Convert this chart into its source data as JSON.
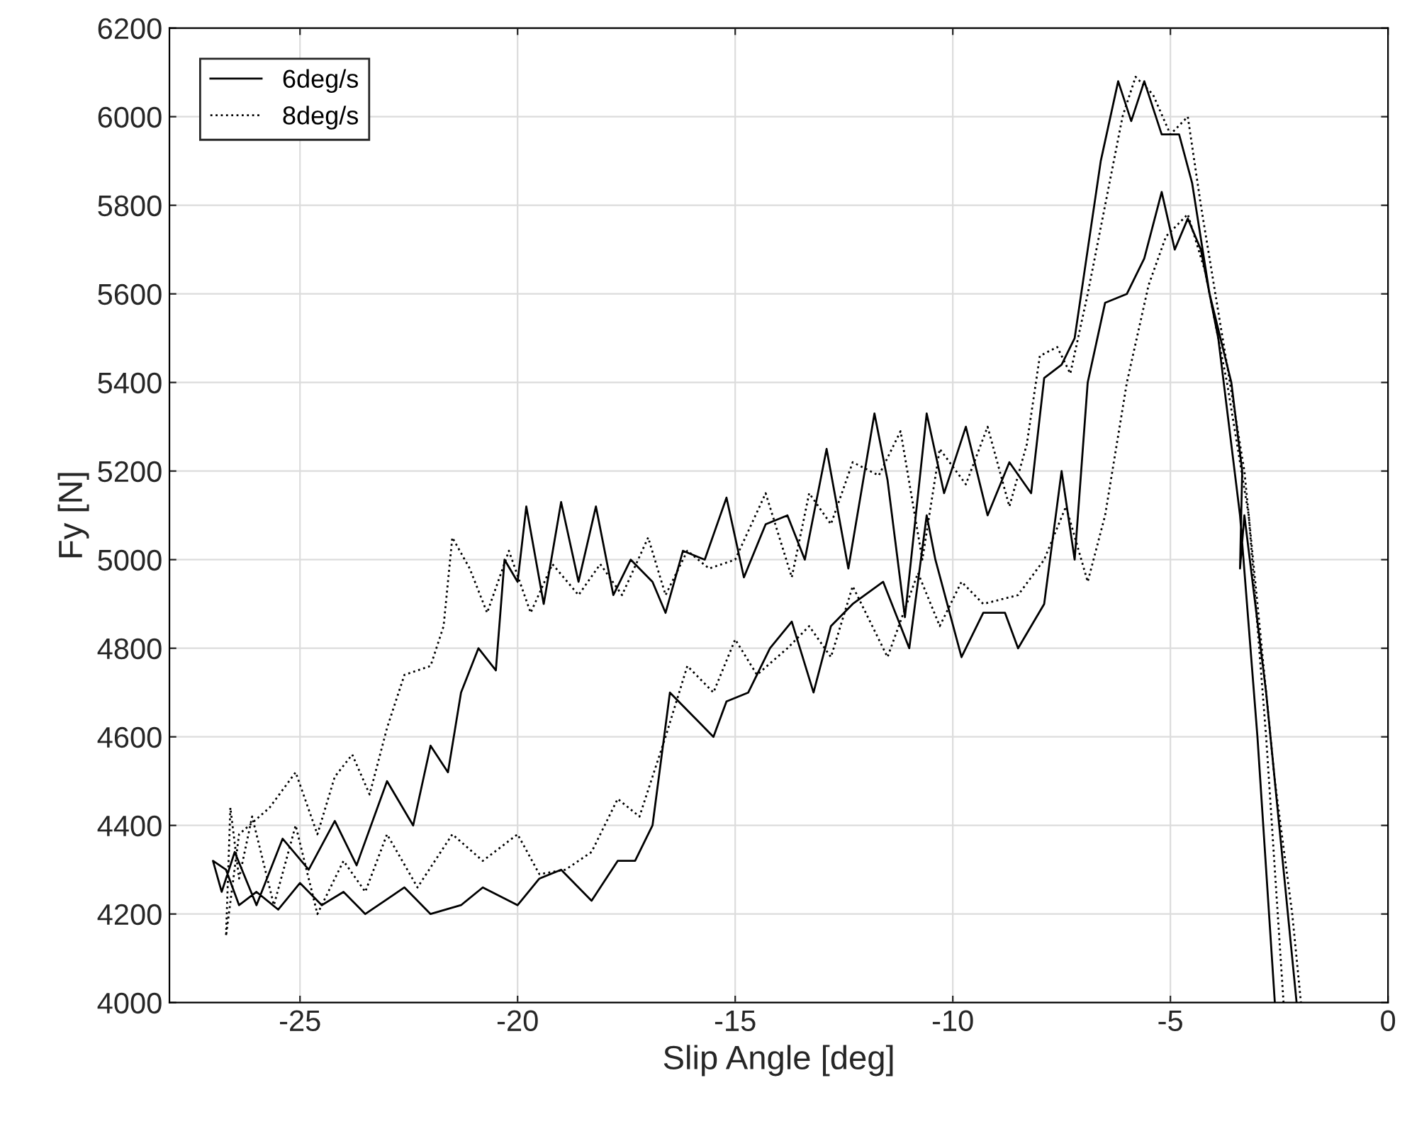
{
  "chart_data": {
    "type": "line",
    "xlabel": "Slip Angle [deg]",
    "ylabel": "Fy [N]",
    "xlim": [
      -28,
      0
    ],
    "xticks": [
      -25,
      -20,
      -15,
      -10,
      -5,
      0
    ],
    "ylim": [
      4000,
      6200
    ],
    "yticks": [
      4000,
      4200,
      4400,
      4600,
      4800,
      5000,
      5200,
      5400,
      5600,
      5800,
      6000,
      6200
    ],
    "grid": true,
    "legend": "top left",
    "marker": "none",
    "series": [
      {
        "name": "6deg/s",
        "color": "#000000",
        "line_style": "solid",
        "x": [
          -2.6,
          -3.0,
          -3.4,
          -3.9,
          -4.3,
          -4.6,
          -4.9,
          -5.2,
          -5.6,
          -6.0,
          -6.5,
          -6.9,
          -7.2,
          -7.5,
          -7.9,
          -8.5,
          -8.8,
          -9.3,
          -9.8,
          -10.4,
          -10.6,
          -11.0,
          -11.6,
          -12.3,
          -12.8,
          -13.2,
          -13.7,
          -14.2,
          -14.7,
          -15.2,
          -15.5,
          -16.0,
          -16.5,
          -16.9,
          -17.3,
          -17.7,
          -18.3,
          -19.0,
          -19.5,
          -20.0,
          -20.8,
          -21.3,
          -22.0,
          -22.6,
          -23.5,
          -24.0,
          -24.5,
          -25.0,
          -25.5,
          -26.0,
          -26.4,
          -26.7,
          -27.0,
          -26.8,
          -26.5,
          -26.0,
          -25.4,
          -24.8,
          -24.2,
          -23.7,
          -23.0,
          -22.4,
          -22.0,
          -21.6,
          -21.3,
          -20.9,
          -20.5,
          -20.3,
          -20.0,
          -19.8,
          -19.4,
          -19.0,
          -18.6,
          -18.2,
          -17.8,
          -17.4,
          -16.9,
          -16.6,
          -16.2,
          -15.7,
          -15.2,
          -14.8,
          -14.3,
          -13.8,
          -13.4,
          -12.9,
          -12.4,
          -11.8,
          -11.5,
          -11.1,
          -10.6,
          -10.2,
          -9.7,
          -9.2,
          -8.7,
          -8.2,
          -7.9,
          -7.5,
          -7.2,
          -6.9,
          -6.6,
          -6.2,
          -5.9,
          -5.6,
          -5.2,
          -4.8,
          -4.5,
          -4.1,
          -3.6,
          -3.35,
          -3.4,
          -3.3,
          -2.8,
          -2.5,
          -2.1
        ],
        "values": [
          4000,
          4600,
          5100,
          5500,
          5700,
          5770,
          5700,
          5830,
          5680,
          5600,
          5580,
          5400,
          5000,
          5200,
          4900,
          4800,
          4880,
          4880,
          4780,
          5000,
          5100,
          4800,
          4950,
          4900,
          4850,
          4700,
          4860,
          4800,
          4700,
          4680,
          4600,
          4650,
          4700,
          4400,
          4320,
          4320,
          4230,
          4300,
          4280,
          4220,
          4260,
          4220,
          4200,
          4260,
          4200,
          4250,
          4220,
          4270,
          4210,
          4250,
          4220,
          4300,
          4320,
          4250,
          4340,
          4220,
          4370,
          4300,
          4410,
          4310,
          4500,
          4400,
          4580,
          4520,
          4700,
          4800,
          4750,
          5000,
          4950,
          5120,
          4900,
          5130,
          4950,
          5120,
          4920,
          5000,
          4950,
          4880,
          5020,
          5000,
          5140,
          4960,
          5080,
          5100,
          5000,
          5250,
          4980,
          5330,
          5180,
          4870,
          5330,
          5150,
          5300,
          5100,
          5220,
          5150,
          5410,
          5440,
          5500,
          5700,
          5900,
          6080,
          5990,
          6080,
          5960,
          5960,
          5850,
          5600,
          5400,
          5200,
          4980,
          5100,
          4700,
          4400,
          4000
        ]
      },
      {
        "name": "8deg/s",
        "color": "#000000",
        "line_style": "dotted",
        "x": [
          -2.4,
          -2.8,
          -3.2,
          -3.7,
          -4.2,
          -4.6,
          -5.1,
          -5.5,
          -6.0,
          -6.5,
          -6.9,
          -7.4,
          -7.9,
          -8.5,
          -9.3,
          -9.8,
          -10.3,
          -10.8,
          -11.5,
          -12.3,
          -12.8,
          -13.3,
          -13.8,
          -14.5,
          -15.0,
          -15.5,
          -16.1,
          -16.6,
          -17.2,
          -17.7,
          -18.3,
          -18.9,
          -19.5,
          -20.0,
          -20.8,
          -21.5,
          -22.3,
          -23.0,
          -23.5,
          -24.0,
          -24.6,
          -25.1,
          -25.6,
          -26.1,
          -26.4,
          -26.6,
          -26.7,
          -26.4,
          -25.7,
          -25.1,
          -24.6,
          -24.2,
          -23.8,
          -23.4,
          -23.0,
          -22.6,
          -22.0,
          -21.7,
          -21.5,
          -21.1,
          -20.7,
          -20.2,
          -19.7,
          -19.2,
          -18.6,
          -18.1,
          -17.6,
          -17.0,
          -16.6,
          -16.1,
          -15.6,
          -15.0,
          -14.3,
          -13.7,
          -13.3,
          -12.8,
          -12.3,
          -11.7,
          -11.2,
          -10.7,
          -10.3,
          -9.7,
          -9.2,
          -8.7,
          -8.3,
          -8.0,
          -7.6,
          -7.3,
          -6.9,
          -6.5,
          -6.1,
          -5.8,
          -5.4,
          -5.0,
          -4.6,
          -4.3,
          -3.8,
          -3.3,
          -3.0,
          -2.6,
          -2.2,
          -2.0
        ],
        "values": [
          4000,
          4600,
          5100,
          5400,
          5650,
          5780,
          5730,
          5620,
          5400,
          5100,
          4950,
          5120,
          5000,
          4920,
          4900,
          4950,
          4850,
          4970,
          4780,
          4940,
          4780,
          4850,
          4800,
          4740,
          4820,
          4700,
          4760,
          4600,
          4420,
          4460,
          4340,
          4300,
          4290,
          4380,
          4320,
          4380,
          4260,
          4380,
          4250,
          4320,
          4200,
          4400,
          4220,
          4420,
          4280,
          4440,
          4150,
          4380,
          4440,
          4520,
          4380,
          4510,
          4560,
          4470,
          4620,
          4740,
          4760,
          4850,
          5050,
          4980,
          4880,
          5020,
          4880,
          4990,
          4920,
          4990,
          4920,
          5050,
          4920,
          5020,
          4980,
          5000,
          5150,
          4960,
          5150,
          5080,
          5220,
          5190,
          5290,
          5000,
          5250,
          5170,
          5300,
          5120,
          5260,
          5460,
          5480,
          5420,
          5600,
          5800,
          6000,
          6090,
          6050,
          5960,
          6000,
          5800,
          5500,
          5200,
          4900,
          4500,
          4200,
          4000
        ]
      }
    ]
  }
}
